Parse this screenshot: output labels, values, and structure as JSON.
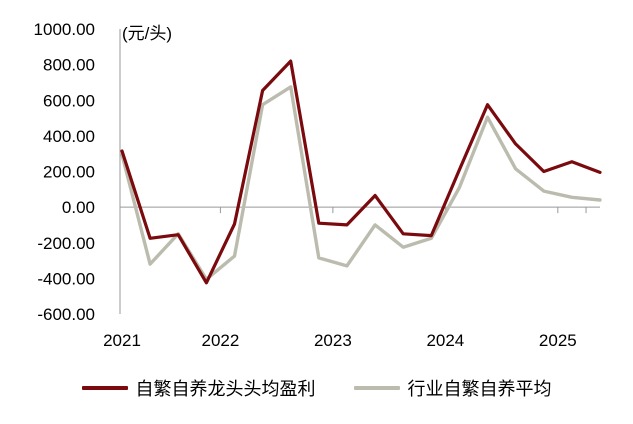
{
  "chart_data": {
    "type": "line",
    "unit_label": "(元/头)",
    "ylim": [
      -600,
      1000
    ],
    "yticks": [
      -600,
      -400,
      -200,
      0,
      200,
      400,
      600,
      800,
      1000
    ],
    "ytick_labels": [
      "-600.00",
      "-400.00",
      "-200.00",
      "0.00",
      "200.00",
      "400.00",
      "600.00",
      "800.00",
      "1000.00"
    ],
    "xticks": [
      "2021",
      "2022",
      "2023",
      "2024",
      "2025"
    ],
    "x": [
      "2021Q1",
      "2021Q2",
      "2021Q3",
      "2021Q4",
      "2022Q1",
      "2022Q2",
      "2022Q3",
      "2022Q4",
      "2023Q1",
      "2023Q2",
      "2023Q3",
      "2023Q4",
      "2024Q1",
      "2024Q2",
      "2024Q3",
      "2024Q4",
      "2025Q1",
      "2025Q2"
    ],
    "series": [
      {
        "name": "自繁自养龙头头均盈利",
        "color": "#7a0a0e",
        "values": [
          315,
          -175,
          -155,
          -425,
          -95,
          655,
          820,
          -90,
          -100,
          65,
          -150,
          -160,
          210,
          575,
          355,
          200,
          255,
          195
        ]
      },
      {
        "name": "行业自繁自养平均",
        "color": "#bcbcae",
        "values": [
          295,
          -320,
          -150,
          -405,
          -275,
          575,
          675,
          -285,
          -330,
          -100,
          -225,
          -175,
          110,
          505,
          215,
          90,
          55,
          40
        ]
      }
    ],
    "grid": false,
    "legend_position": "bottom"
  }
}
